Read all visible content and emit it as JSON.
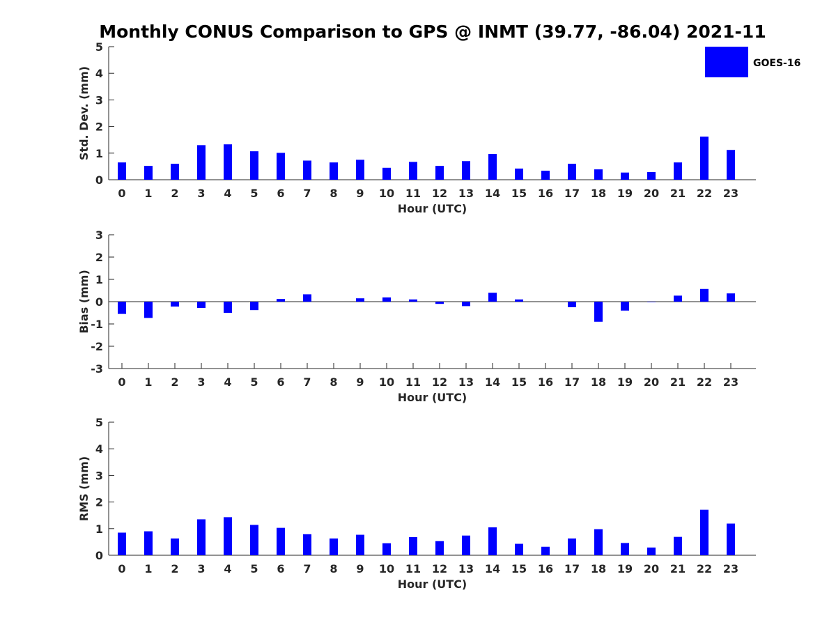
{
  "title": "Monthly CONUS Comparison to GPS @ INMT (39.77, -86.04) 2021-11",
  "legend": {
    "label": "GOES-16",
    "color": "#0000ff",
    "placement": "top-right"
  },
  "chart_data": [
    {
      "type": "bar",
      "name": "std",
      "categories": [
        "0",
        "1",
        "2",
        "3",
        "4",
        "5",
        "6",
        "7",
        "8",
        "9",
        "10",
        "11",
        "12",
        "13",
        "14",
        "15",
        "16",
        "17",
        "18",
        "19",
        "20",
        "21",
        "22",
        "23"
      ],
      "series": [
        {
          "name": "GOES-16",
          "values": [
            0.65,
            0.52,
            0.6,
            1.3,
            1.33,
            1.07,
            1.01,
            0.72,
            0.65,
            0.75,
            0.45,
            0.67,
            0.52,
            0.7,
            0.97,
            0.42,
            0.34,
            0.6,
            0.39,
            0.27,
            0.29,
            0.65,
            1.62,
            1.12
          ]
        }
      ],
      "xlabel": "Hour (UTC)",
      "ylabel": "Std. Dev. (mm)",
      "ylim": [
        0,
        5
      ],
      "yticks": [
        "0",
        "1",
        "2",
        "3",
        "4",
        "5"
      ],
      "grid": false
    },
    {
      "type": "bar",
      "name": "bias",
      "categories": [
        "0",
        "1",
        "2",
        "3",
        "4",
        "5",
        "6",
        "7",
        "8",
        "9",
        "10",
        "11",
        "12",
        "13",
        "14",
        "15",
        "16",
        "17",
        "18",
        "19",
        "20",
        "21",
        "22",
        "23"
      ],
      "series": [
        {
          "name": "GOES-16",
          "values": [
            -0.55,
            -0.73,
            -0.22,
            -0.28,
            -0.5,
            -0.38,
            0.12,
            0.33,
            0.0,
            0.15,
            0.19,
            0.1,
            -0.1,
            -0.2,
            0.4,
            0.1,
            0.0,
            -0.25,
            -0.9,
            -0.4,
            -0.02,
            0.27,
            0.57,
            0.37
          ]
        }
      ],
      "xlabel": "Hour (UTC)",
      "ylabel": "Bias (mm)",
      "ylim": [
        -3,
        3
      ],
      "yticks": [
        "-3",
        "-2",
        "-1",
        "0",
        "1",
        "2",
        "3"
      ],
      "grid": false
    },
    {
      "type": "bar",
      "name": "rms",
      "categories": [
        "0",
        "1",
        "2",
        "3",
        "4",
        "5",
        "6",
        "7",
        "8",
        "9",
        "10",
        "11",
        "12",
        "13",
        "14",
        "15",
        "16",
        "17",
        "18",
        "19",
        "20",
        "21",
        "22",
        "23"
      ],
      "series": [
        {
          "name": "GOES-16",
          "values": [
            0.85,
            0.9,
            0.63,
            1.35,
            1.43,
            1.14,
            1.03,
            0.79,
            0.63,
            0.77,
            0.45,
            0.68,
            0.53,
            0.74,
            1.05,
            0.43,
            0.32,
            0.63,
            0.98,
            0.46,
            0.29,
            0.69,
            1.71,
            1.19
          ]
        }
      ],
      "xlabel": "Hour (UTC)",
      "ylabel": "RMS (mm)",
      "ylim": [
        0,
        5
      ],
      "yticks": [
        "0",
        "1",
        "2",
        "3",
        "4",
        "5"
      ],
      "grid": false
    }
  ]
}
